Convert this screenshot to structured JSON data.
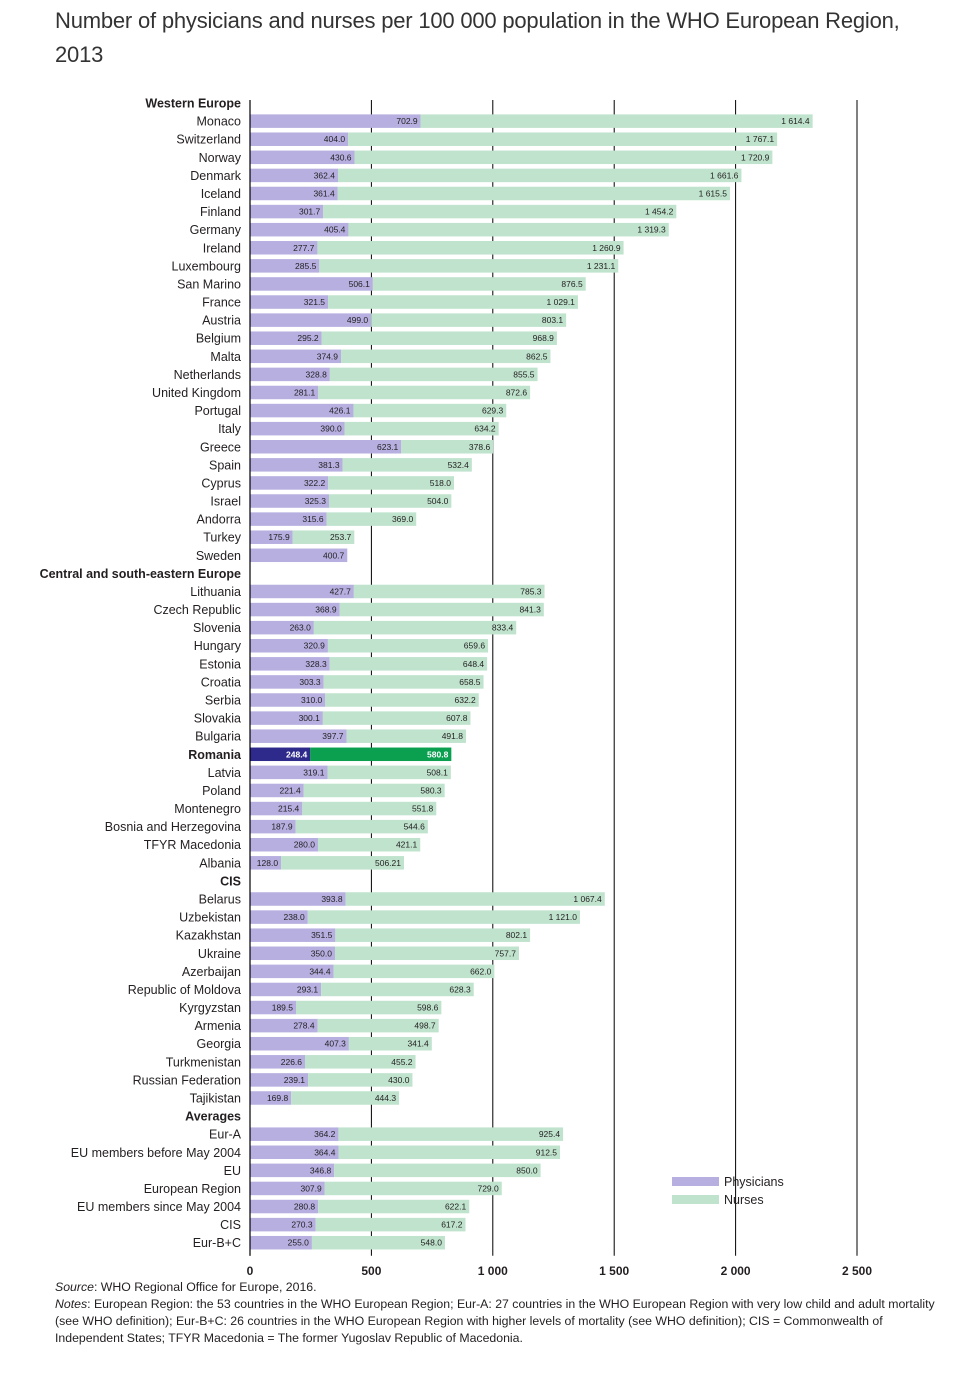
{
  "title": "Number of physicians and nurses per 100 000 population in the WHO European Region, 2013",
  "footer": {
    "source_label": "Source",
    "source_text": ": WHO Regional Office for Europe, 2016.",
    "notes_label": "Notes",
    "notes_text": ": European Region: the 53 countries in the WHO European Region; Eur-A: 27 countries in the WHO European Region with very low child and adult mortality (see WHO definition); Eur-B+C: 26 countries in the WHO European Region with higher levels of mortality (see WHO definition); CIS = Commonwealth of Independent States; TFYR Macedonia = The former Yugoslav Republic of Macedonia."
  },
  "colors": {
    "physicians": "#b6afe0",
    "nurses": "#bfe3cd",
    "physicians_highlight": "#2e2a8c",
    "nurses_highlight": "#0aa04f",
    "gridline": "#000000"
  },
  "chart_data": {
    "type": "bar",
    "orientation": "horizontal",
    "stacked": true,
    "xlim": [
      0,
      2500
    ],
    "xticks": [
      0,
      500,
      1000,
      1500,
      2000,
      2500
    ],
    "xtick_labels": [
      "0",
      "500",
      "1 000",
      "1 500",
      "2 000",
      "2 500"
    ],
    "legend": {
      "position": "bottom-right",
      "entries": [
        "Physicians",
        "Nurses"
      ]
    },
    "series_names": [
      "Physicians",
      "Nurses"
    ],
    "groups": [
      {
        "name": "Western Europe",
        "rows": [
          {
            "label": "Monaco",
            "physicians": 702.9,
            "physicians_label": "702.9",
            "nurses": 1614.4,
            "nurses_label": "1 614.4"
          },
          {
            "label": "Switzerland",
            "physicians": 404.0,
            "physicians_label": "404.0",
            "nurses": 1767.1,
            "nurses_label": "1 767.1"
          },
          {
            "label": "Norway",
            "physicians": 430.6,
            "physicians_label": "430.6",
            "nurses": 1720.9,
            "nurses_label": "1 720.9"
          },
          {
            "label": "Denmark",
            "physicians": 362.4,
            "physicians_label": "362.4",
            "nurses": 1661.6,
            "nurses_label": "1 661.6"
          },
          {
            "label": "Iceland",
            "physicians": 361.4,
            "physicians_label": "361.4",
            "nurses": 1615.5,
            "nurses_label": "1 615.5"
          },
          {
            "label": "Finland",
            "physicians": 301.7,
            "physicians_label": "301.7",
            "nurses": 1454.2,
            "nurses_label": "1 454.2"
          },
          {
            "label": "Germany",
            "physicians": 405.4,
            "physicians_label": "405.4",
            "nurses": 1319.3,
            "nurses_label": "1 319.3"
          },
          {
            "label": "Ireland",
            "physicians": 277.7,
            "physicians_label": "277.7",
            "nurses": 1260.9,
            "nurses_label": "1 260.9"
          },
          {
            "label": "Luxembourg",
            "physicians": 285.5,
            "physicians_label": "285.5",
            "nurses": 1231.1,
            "nurses_label": "1 231.1"
          },
          {
            "label": "San Marino",
            "physicians": 506.1,
            "physicians_label": "506.1",
            "nurses": 876.5,
            "nurses_label": "876.5"
          },
          {
            "label": "France",
            "physicians": 321.5,
            "physicians_label": "321.5",
            "nurses": 1029.1,
            "nurses_label": "1 029.1"
          },
          {
            "label": "Austria",
            "physicians": 499.0,
            "physicians_label": "499.0",
            "nurses": 803.1,
            "nurses_label": "803.1"
          },
          {
            "label": "Belgium",
            "physicians": 295.2,
            "physicians_label": "295.2",
            "nurses": 968.9,
            "nurses_label": "968.9"
          },
          {
            "label": "Malta",
            "physicians": 374.9,
            "physicians_label": "374.9",
            "nurses": 862.5,
            "nurses_label": "862.5"
          },
          {
            "label": "Netherlands",
            "physicians": 328.8,
            "physicians_label": "328.8",
            "nurses": 855.5,
            "nurses_label": "855.5"
          },
          {
            "label": "United Kingdom",
            "physicians": 281.1,
            "physicians_label": "281.1",
            "nurses": 872.6,
            "nurses_label": "872.6"
          },
          {
            "label": "Portugal",
            "physicians": 426.1,
            "physicians_label": "426.1",
            "nurses": 629.3,
            "nurses_label": "629.3"
          },
          {
            "label": "Italy",
            "physicians": 390.0,
            "physicians_label": "390.0",
            "nurses": 634.2,
            "nurses_label": "634.2"
          },
          {
            "label": "Greece",
            "physicians": 623.1,
            "physicians_label": "623.1",
            "nurses": 378.6,
            "nurses_label": "378.6"
          },
          {
            "label": "Spain",
            "physicians": 381.3,
            "physicians_label": "381.3",
            "nurses": 532.4,
            "nurses_label": "532.4"
          },
          {
            "label": "Cyprus",
            "physicians": 322.2,
            "physicians_label": "322.2",
            "nurses": 518.0,
            "nurses_label": "518.0"
          },
          {
            "label": "Israel",
            "physicians": 325.3,
            "physicians_label": "325.3",
            "nurses": 504.0,
            "nurses_label": "504.0"
          },
          {
            "label": "Andorra",
            "physicians": 315.6,
            "physicians_label": "315.6",
            "nurses": 369.0,
            "nurses_label": "369.0"
          },
          {
            "label": "Turkey",
            "physicians": 175.9,
            "physicians_label": "175.9",
            "nurses": 253.7,
            "nurses_label": "253.7"
          },
          {
            "label": "Sweden",
            "physicians": 400.7,
            "physicians_label": "400.7",
            "nurses": null,
            "nurses_label": null
          }
        ]
      },
      {
        "name": "Central and south-eastern Europe",
        "rows": [
          {
            "label": "Lithuania",
            "physicians": 427.7,
            "physicians_label": "427.7",
            "nurses": 785.3,
            "nurses_label": "785.3"
          },
          {
            "label": "Czech Republic",
            "physicians": 368.9,
            "physicians_label": "368.9",
            "nurses": 841.3,
            "nurses_label": "841.3"
          },
          {
            "label": "Slovenia",
            "physicians": 263.0,
            "physicians_label": "263.0",
            "nurses": 833.4,
            "nurses_label": "833.4"
          },
          {
            "label": "Hungary",
            "physicians": 320.9,
            "physicians_label": "320.9",
            "nurses": 659.6,
            "nurses_label": "659.6"
          },
          {
            "label": "Estonia",
            "physicians": 328.3,
            "physicians_label": "328.3",
            "nurses": 648.4,
            "nurses_label": "648.4"
          },
          {
            "label": "Croatia",
            "physicians": 303.3,
            "physicians_label": "303.3",
            "nurses": 658.5,
            "nurses_label": "658.5"
          },
          {
            "label": "Serbia",
            "physicians": 310.0,
            "physicians_label": "310.0",
            "nurses": 632.2,
            "nurses_label": "632.2"
          },
          {
            "label": "Slovakia",
            "physicians": 300.1,
            "physicians_label": "300.1",
            "nurses": 607.8,
            "nurses_label": "607.8"
          },
          {
            "label": "Bulgaria",
            "physicians": 397.7,
            "physicians_label": "397.7",
            "nurses": 491.8,
            "nurses_label": "491.8"
          },
          {
            "label": "Romania",
            "physicians": 248.4,
            "physicians_label": "248.4",
            "nurses": 580.8,
            "nurses_label": "580.8",
            "highlight": true
          },
          {
            "label": "Latvia",
            "physicians": 319.1,
            "physicians_label": "319.1",
            "nurses": 508.1,
            "nurses_label": "508.1"
          },
          {
            "label": "Poland",
            "physicians": 221.4,
            "physicians_label": "221.4",
            "nurses": 580.3,
            "nurses_label": "580.3"
          },
          {
            "label": "Montenegro",
            "physicians": 215.4,
            "physicians_label": "215.4",
            "nurses": 551.8,
            "nurses_label": "551.8"
          },
          {
            "label": "Bosnia and Herzegovina",
            "physicians": 187.9,
            "physicians_label": "187.9",
            "nurses": 544.6,
            "nurses_label": "544.6"
          },
          {
            "label": "TFYR Macedonia",
            "physicians": 280.0,
            "physicians_label": "280.0",
            "nurses": 421.1,
            "nurses_label": "421.1"
          },
          {
            "label": "Albania",
            "physicians": 128.0,
            "physicians_label": "128.0",
            "nurses": 506.21,
            "nurses_label": "506.21"
          }
        ]
      },
      {
        "name": "CIS",
        "rows": [
          {
            "label": "Belarus",
            "physicians": 393.8,
            "physicians_label": "393.8",
            "nurses": 1067.4,
            "nurses_label": "1 067.4"
          },
          {
            "label": "Uzbekistan",
            "physicians": 238.0,
            "physicians_label": "238.0",
            "nurses": 1121.0,
            "nurses_label": "1 121.0"
          },
          {
            "label": "Kazakhstan",
            "physicians": 351.5,
            "physicians_label": "351.5",
            "nurses": 802.1,
            "nurses_label": "802.1"
          },
          {
            "label": "Ukraine",
            "physicians": 350.0,
            "physicians_label": "350.0",
            "nurses": 757.7,
            "nurses_label": "757.7"
          },
          {
            "label": "Azerbaijan",
            "physicians": 344.4,
            "physicians_label": "344.4",
            "nurses": 662.0,
            "nurses_label": "662.0"
          },
          {
            "label": "Republic of Moldova",
            "physicians": 293.1,
            "physicians_label": "293.1",
            "nurses": 628.3,
            "nurses_label": "628.3"
          },
          {
            "label": "Kyrgyzstan",
            "physicians": 189.5,
            "physicians_label": "189.5",
            "nurses": 598.6,
            "nurses_label": "598.6"
          },
          {
            "label": "Armenia",
            "physicians": 278.4,
            "physicians_label": "278.4",
            "nurses": 498.7,
            "nurses_label": "498.7"
          },
          {
            "label": "Georgia",
            "physicians": 407.3,
            "physicians_label": "407.3",
            "nurses": 341.4,
            "nurses_label": "341.4"
          },
          {
            "label": "Turkmenistan",
            "physicians": 226.6,
            "physicians_label": "226.6",
            "nurses": 455.2,
            "nurses_label": "455.2"
          },
          {
            "label": "Russian Federation",
            "physicians": 239.1,
            "physicians_label": "239.1",
            "nurses": 430.0,
            "nurses_label": "430.0"
          },
          {
            "label": "Tajikistan",
            "physicians": 169.8,
            "physicians_label": "169.8",
            "nurses": 444.3,
            "nurses_label": "444.3"
          }
        ]
      },
      {
        "name": "Averages",
        "rows": [
          {
            "label": "Eur-A",
            "physicians": 364.2,
            "physicians_label": "364.2",
            "nurses": 925.4,
            "nurses_label": "925.4"
          },
          {
            "label": "EU members before May 2004",
            "physicians": 364.4,
            "physicians_label": "364.4",
            "nurses": 912.5,
            "nurses_label": "912.5"
          },
          {
            "label": "EU",
            "physicians": 346.8,
            "physicians_label": "346.8",
            "nurses": 850.0,
            "nurses_label": "850.0"
          },
          {
            "label": "European Region",
            "physicians": 307.9,
            "physicians_label": "307.9",
            "nurses": 729.0,
            "nurses_label": "729.0"
          },
          {
            "label": "EU members since May 2004",
            "physicians": 280.8,
            "physicians_label": "280.8",
            "nurses": 622.1,
            "nurses_label": "622.1"
          },
          {
            "label": "CIS",
            "physicians": 270.3,
            "physicians_label": "270.3",
            "nurses": 617.2,
            "nurses_label": "617.2"
          },
          {
            "label": "Eur-B+C",
            "physicians": 255.0,
            "physicians_label": "255.0",
            "nurses": 548.0,
            "nurses_label": "548.0"
          }
        ]
      }
    ]
  }
}
